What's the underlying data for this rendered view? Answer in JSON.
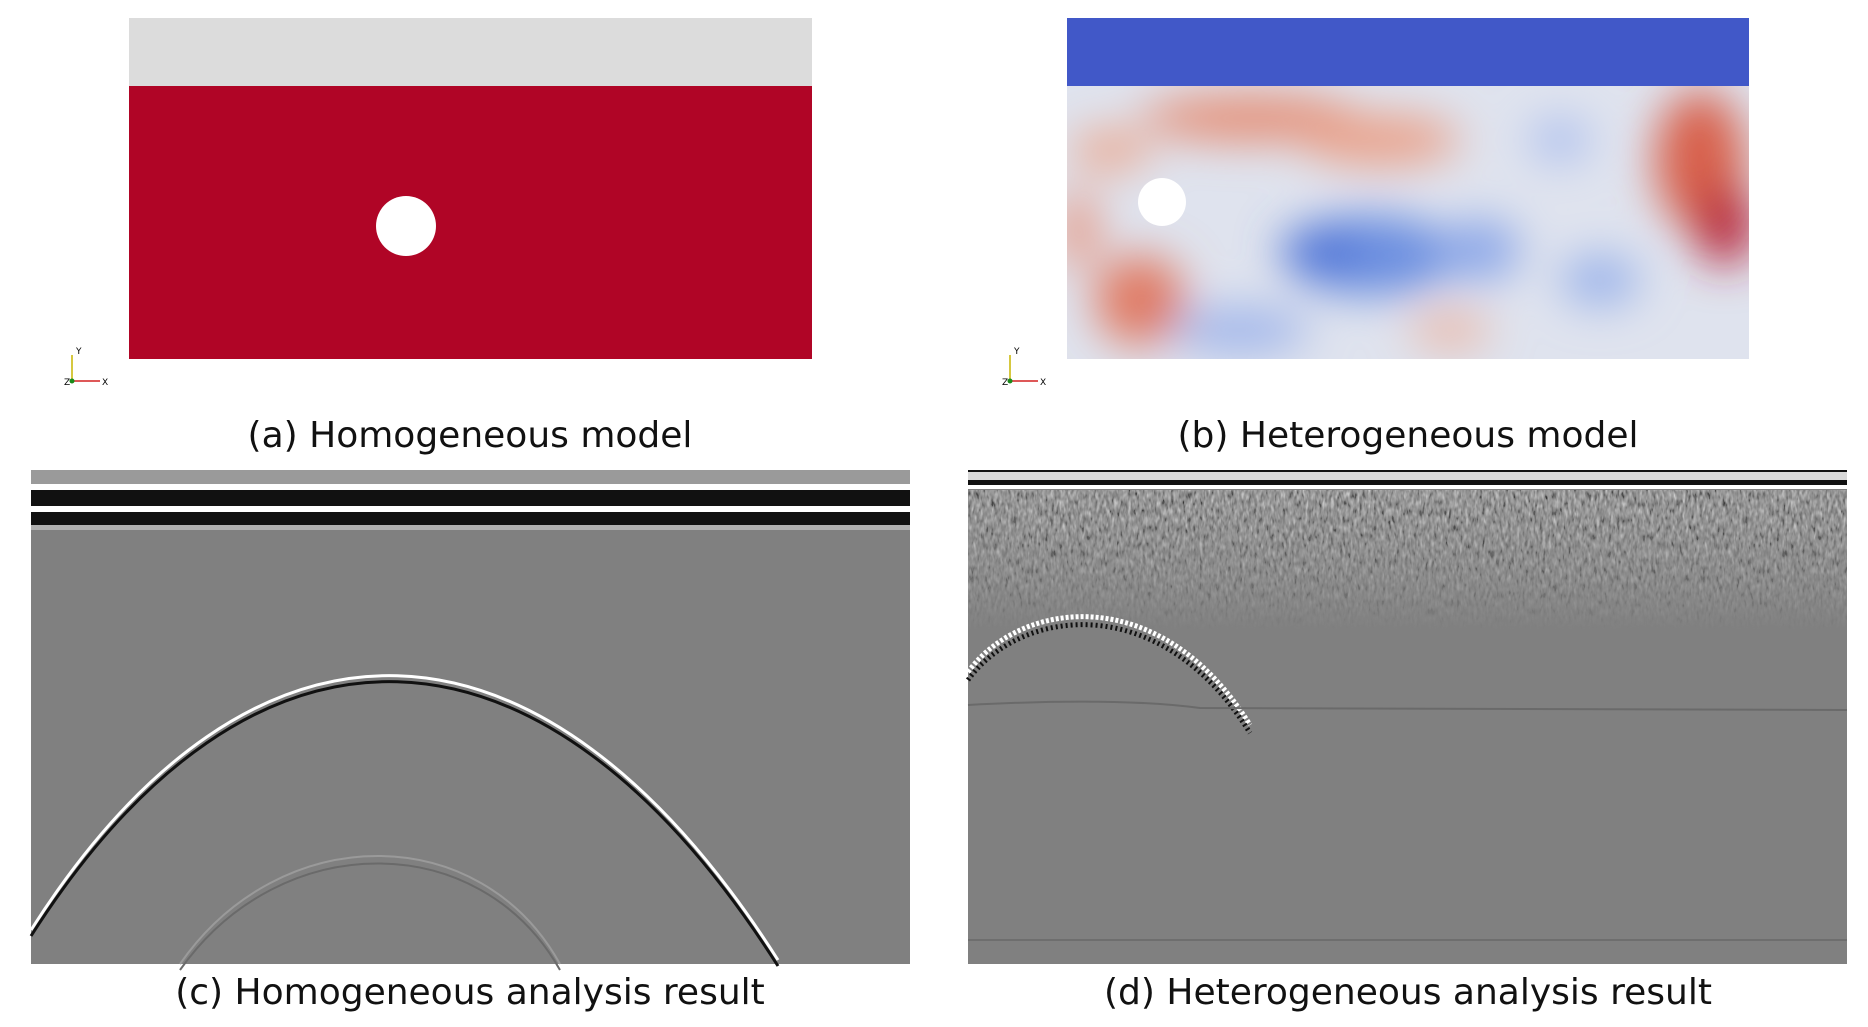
{
  "panels": [
    {
      "caption": "(a) Homogeneous model",
      "triad": {
        "y": "Y",
        "z": "Z",
        "x": "X"
      }
    },
    {
      "caption": "(b) Heterogeneous model",
      "triad": {
        "y": "Y",
        "z": "Z",
        "x": "X"
      }
    },
    {
      "caption": "(c) Homogeneous analysis result"
    },
    {
      "caption": "(d) Heterogeneous analysis result"
    }
  ]
}
